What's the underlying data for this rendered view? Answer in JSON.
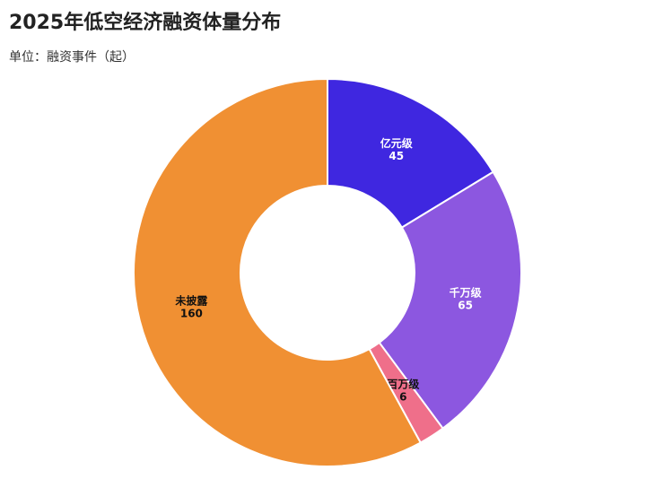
{
  "chart_data": {
    "type": "donut",
    "title": "2025年低空经济融资体量分布",
    "subtitle": "单位：融资事件（起）",
    "categories": [
      "亿元级",
      "千万级",
      "百万级",
      "未披露"
    ],
    "values": [
      45,
      65,
      6,
      160
    ],
    "colors": [
      "#3f27e0",
      "#8c57e0",
      "#ef6f8a",
      "#f09033"
    ]
  }
}
